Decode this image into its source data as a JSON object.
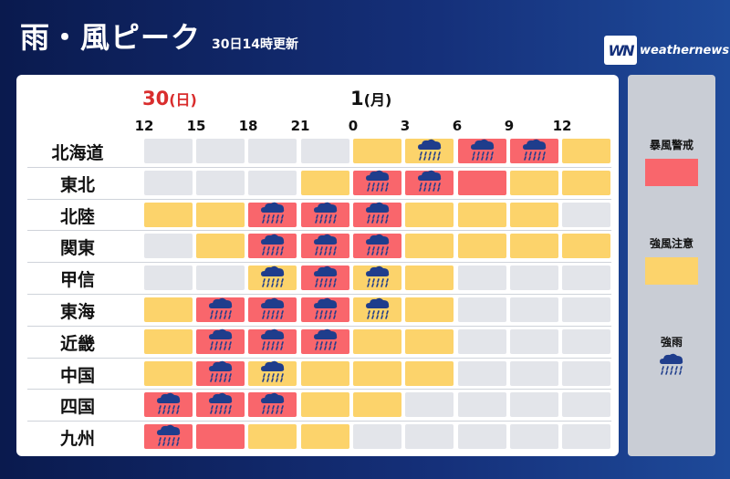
{
  "header": {
    "title": "雨・風ピーク",
    "updated": "30日14時更新",
    "logo_mark": "WN",
    "logo_text": "weathernews"
  },
  "days": [
    {
      "num": "30",
      "paren": "(日)"
    },
    {
      "num": "1",
      "paren": "(月)"
    }
  ],
  "hours": [
    "12",
    "15",
    "18",
    "21",
    "0",
    "3",
    "6",
    "9",
    "12"
  ],
  "colors": {
    "none": "#e3e5ea",
    "caution": "#fcd36b",
    "warning": "#f9666c",
    "rain_icon": "#1f3d8c"
  },
  "regions": [
    {
      "name": "北海道",
      "cells": [
        "g",
        "g",
        "g",
        "g",
        "y",
        "yR",
        "rR",
        "rR",
        "y"
      ]
    },
    {
      "name": "東北",
      "cells": [
        "g",
        "g",
        "g",
        "y",
        "rR",
        "rR",
        "r",
        "y",
        "y"
      ]
    },
    {
      "name": "北陸",
      "cells": [
        "y",
        "y",
        "rR",
        "rR",
        "rR",
        "y",
        "y",
        "y",
        "g"
      ]
    },
    {
      "name": "関東",
      "cells": [
        "g",
        "y",
        "rR",
        "rR",
        "rR",
        "y",
        "y",
        "y",
        "y"
      ]
    },
    {
      "name": "甲信",
      "cells": [
        "g",
        "g",
        "yR",
        "rR",
        "yR",
        "y",
        "g",
        "g",
        "g"
      ]
    },
    {
      "name": "東海",
      "cells": [
        "y",
        "rR",
        "rR",
        "rR",
        "yR",
        "y",
        "g",
        "g",
        "g"
      ]
    },
    {
      "name": "近畿",
      "cells": [
        "y",
        "rR",
        "rR",
        "rR",
        "y",
        "y",
        "g",
        "g",
        "g"
      ]
    },
    {
      "name": "中国",
      "cells": [
        "y",
        "rR",
        "yR",
        "y",
        "y",
        "y",
        "g",
        "g",
        "g"
      ]
    },
    {
      "name": "四国",
      "cells": [
        "rR",
        "rR",
        "rR",
        "y",
        "y",
        "g",
        "g",
        "g",
        "g"
      ]
    },
    {
      "name": "九州",
      "cells": [
        "rR",
        "r",
        "y",
        "y",
        "g",
        "g",
        "g",
        "g",
        "g"
      ]
    }
  ],
  "legend": {
    "warning": "暴風警戒",
    "caution": "強風注意",
    "rain": "強雨"
  }
}
